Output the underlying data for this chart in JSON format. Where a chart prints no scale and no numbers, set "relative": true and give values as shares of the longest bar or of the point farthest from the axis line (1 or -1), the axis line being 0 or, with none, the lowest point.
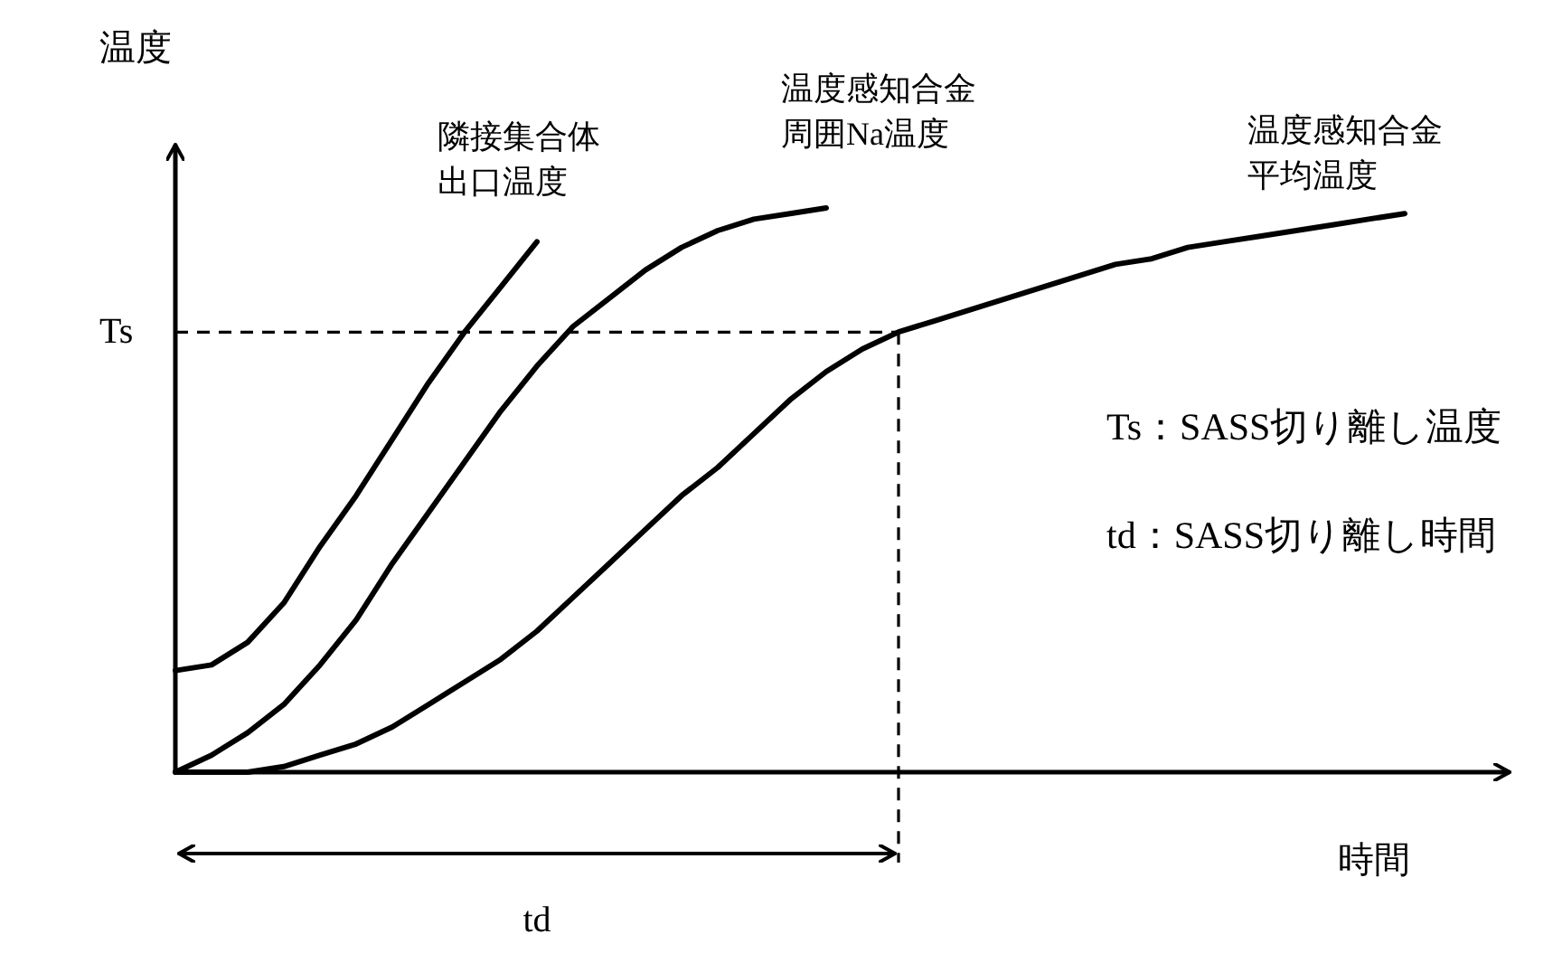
{
  "chart_data": {
    "type": "line",
    "relative": true,
    "xlabel": "時間",
    "ylabel": "温度",
    "marker": "none",
    "categories": [
      null,
      null,
      null,
      null,
      null,
      null,
      null,
      null,
      null,
      null,
      null,
      null,
      null,
      null,
      null,
      null,
      null,
      null,
      null,
      null,
      null,
      null,
      null,
      null,
      null,
      null,
      null,
      null,
      null,
      null,
      null,
      null,
      null,
      null,
      null
    ],
    "series": [
      {
        "name": "隣接集合体出口温度",
        "color": "#000000",
        "values": [
          0.18,
          0.19,
          0.23,
          0.3,
          0.4,
          0.49,
          0.59,
          0.69,
          0.78,
          0.86,
          0.94,
          null,
          null,
          null,
          null,
          null,
          null,
          null,
          null,
          null,
          null,
          null,
          null,
          null,
          null,
          null,
          null,
          null,
          null,
          null,
          null,
          null,
          null,
          null,
          null
        ]
      },
      {
        "name": "温度感知合金周囲Na温度",
        "color": "#000000",
        "values": [
          0,
          0.03,
          0.07,
          0.12,
          0.19,
          0.27,
          0.37,
          0.46,
          0.55,
          0.64,
          0.72,
          0.79,
          0.84,
          0.89,
          0.93,
          0.96,
          0.98,
          0.99,
          1.0,
          null,
          null,
          null,
          null,
          null,
          null,
          null,
          null,
          null,
          null,
          null,
          null,
          null,
          null,
          null,
          null
        ]
      },
      {
        "name": "温度感知合金平均温度",
        "color": "#000000",
        "values": [
          0,
          0,
          0,
          0.01,
          0.03,
          0.05,
          0.08,
          0.12,
          0.16,
          0.2,
          0.25,
          0.31,
          0.37,
          0.43,
          0.49,
          0.54,
          0.6,
          0.66,
          0.71,
          0.75,
          0.78,
          0.8,
          0.82,
          0.84,
          0.86,
          0.88,
          0.9,
          0.91,
          0.93,
          0.94,
          0.95,
          0.96,
          0.97,
          0.98,
          0.99
        ]
      }
    ],
    "ref_lines": [
      {
        "axis": "y",
        "value": 0.78,
        "label": "Ts",
        "line_style": "dashed"
      }
    ],
    "annotations": [
      "Ts：SASS切り離し温度",
      "td：SASS切り離し時間",
      "td"
    ]
  }
}
